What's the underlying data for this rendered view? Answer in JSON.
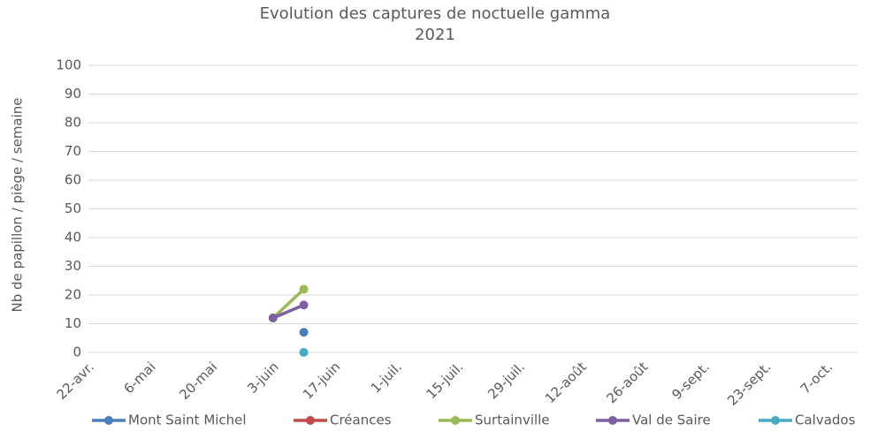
{
  "chart_data": {
    "type": "line",
    "title": "Evolution des captures de noctuelle gamma",
    "subtitle": "2021",
    "y_label": "Nb de papillon / piège / semaine",
    "categories": [
      "22-avr.",
      null,
      "6-mai",
      null,
      "20-mai",
      null,
      "3-juin",
      null,
      "17-juin",
      null,
      "1-juil.",
      null,
      "15-juil.",
      null,
      "29-juil.",
      null,
      "12-août",
      null,
      "26-août",
      null,
      "9-sept.",
      null,
      "23-sept.",
      null,
      "7-oct."
    ],
    "series": [
      {
        "name": "Mont Saint Michel",
        "color": "#4a7ebb",
        "values": [
          null,
          null,
          null,
          null,
          null,
          null,
          null,
          7,
          null,
          null,
          null,
          null,
          null,
          null,
          null,
          null,
          null,
          null,
          null,
          null,
          null,
          null,
          null,
          null,
          null
        ]
      },
      {
        "name": "Créances",
        "color": "#be4b48",
        "values": [
          null,
          null,
          null,
          null,
          null,
          null,
          null,
          null,
          null,
          null,
          null,
          null,
          null,
          null,
          null,
          null,
          null,
          null,
          null,
          null,
          null,
          null,
          null,
          null,
          null
        ]
      },
      {
        "name": "Surtainville",
        "color": "#98b954",
        "values": [
          null,
          null,
          null,
          null,
          null,
          null,
          12,
          22,
          null,
          null,
          null,
          null,
          null,
          null,
          null,
          null,
          null,
          null,
          null,
          null,
          null,
          null,
          null,
          null,
          null
        ]
      },
      {
        "name": "Val de Saire",
        "color": "#7d60a0",
        "values": [
          null,
          null,
          null,
          null,
          null,
          null,
          12,
          16.5,
          null,
          null,
          null,
          null,
          null,
          null,
          null,
          null,
          null,
          null,
          null,
          null,
          null,
          null,
          null,
          null,
          null
        ]
      },
      {
        "name": "Calvados",
        "color": "#46aac5",
        "values": [
          null,
          null,
          null,
          null,
          null,
          null,
          null,
          0,
          null,
          null,
          null,
          null,
          null,
          null,
          null,
          null,
          null,
          null,
          null,
          null,
          null,
          null,
          null,
          null,
          null
        ]
      }
    ],
    "ylim": [
      0,
      100
    ],
    "yticks": [
      0,
      10,
      20,
      30,
      40,
      50,
      60,
      70,
      80,
      90,
      100
    ],
    "grid": true,
    "legend": "bottom"
  }
}
